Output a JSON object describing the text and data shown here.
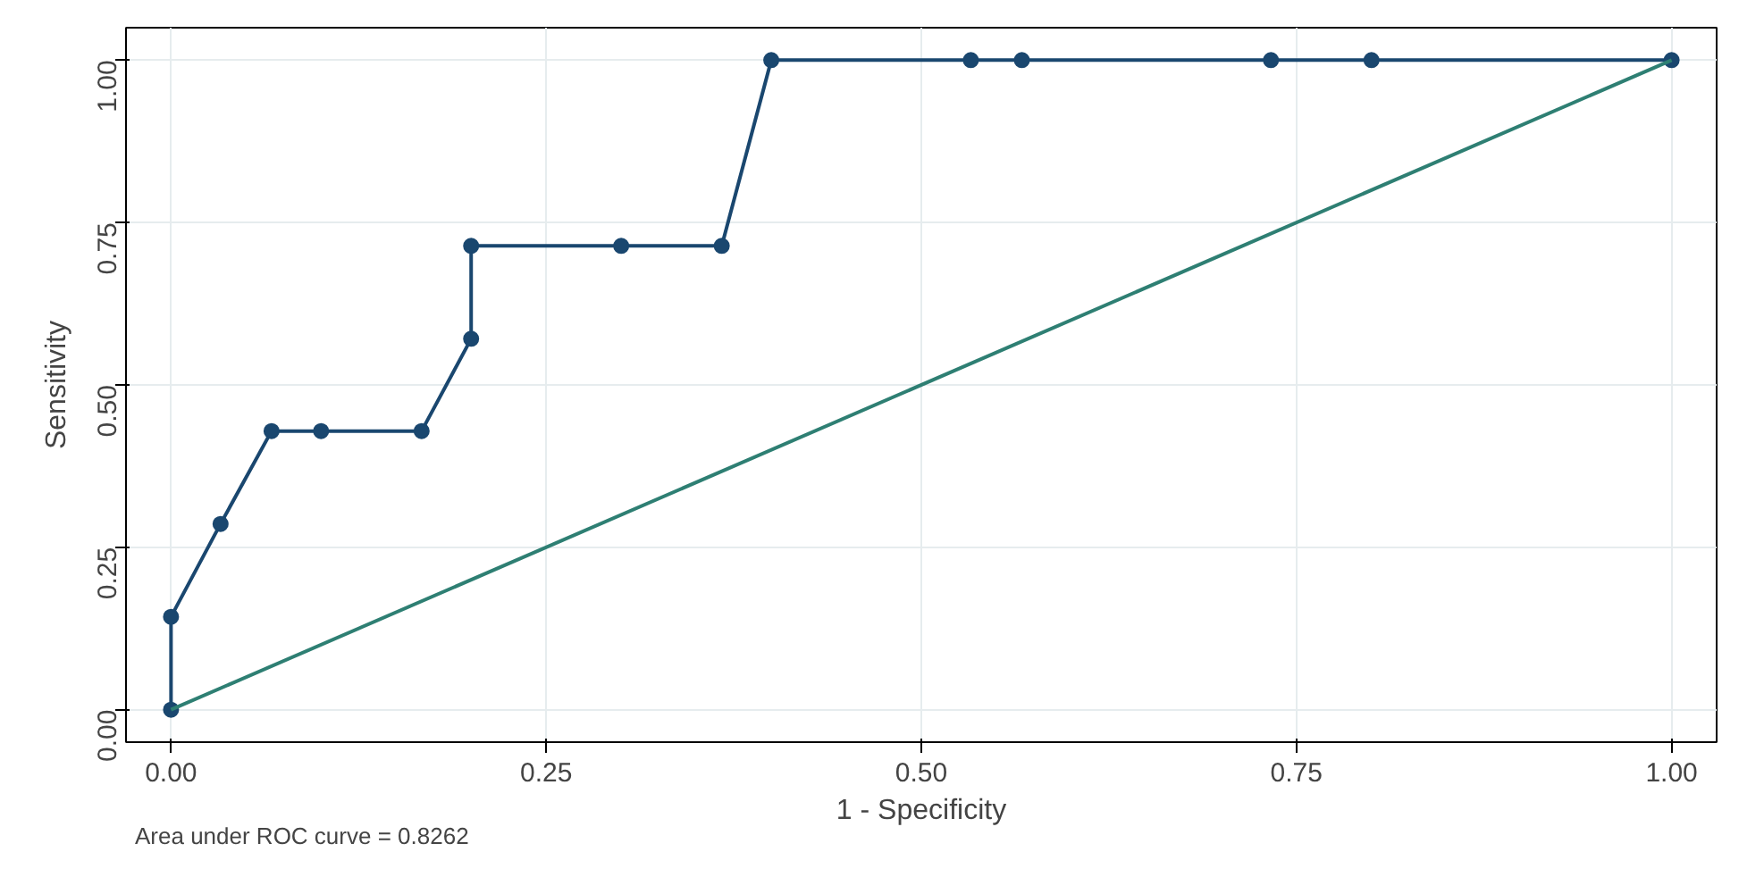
{
  "chart_data": {
    "type": "line",
    "xlabel": "1 - Specificity",
    "ylabel": "Sensitivity",
    "xlim": [
      -0.03,
      1.03
    ],
    "ylim": [
      -0.05,
      1.05
    ],
    "xticks": [
      {
        "value": 0,
        "label": "0.00"
      },
      {
        "value": 0.25,
        "label": "0.25"
      },
      {
        "value": 0.5,
        "label": "0.50"
      },
      {
        "value": 0.75,
        "label": "0.75"
      },
      {
        "value": 1,
        "label": "1.00"
      }
    ],
    "yticks": [
      {
        "value": 0,
        "label": "0.00"
      },
      {
        "value": 0.25,
        "label": "0.25"
      },
      {
        "value": 0.5,
        "label": "0.50"
      },
      {
        "value": 0.75,
        "label": "0.75"
      },
      {
        "value": 1,
        "label": "1.00"
      }
    ],
    "grid": true,
    "series": [
      {
        "color": "#1a476f",
        "marker": "circle",
        "x": [
          0,
          0,
          0.033,
          0.067,
          0.1,
          0.167,
          0.2,
          0.2,
          0.3,
          0.367,
          0.4,
          0.533,
          0.567,
          0.733,
          0.8,
          1
        ],
        "values": [
          0,
          0.143,
          0.286,
          0.429,
          0.429,
          0.429,
          0.571,
          0.714,
          0.714,
          0.714,
          1,
          1,
          1,
          1,
          1,
          1
        ]
      },
      {
        "color": "#2e7f73",
        "marker": "none",
        "x": [
          0,
          1
        ],
        "values": [
          0,
          1
        ]
      }
    ],
    "annotations": [
      "Area under ROC curve = 0.8262"
    ]
  }
}
